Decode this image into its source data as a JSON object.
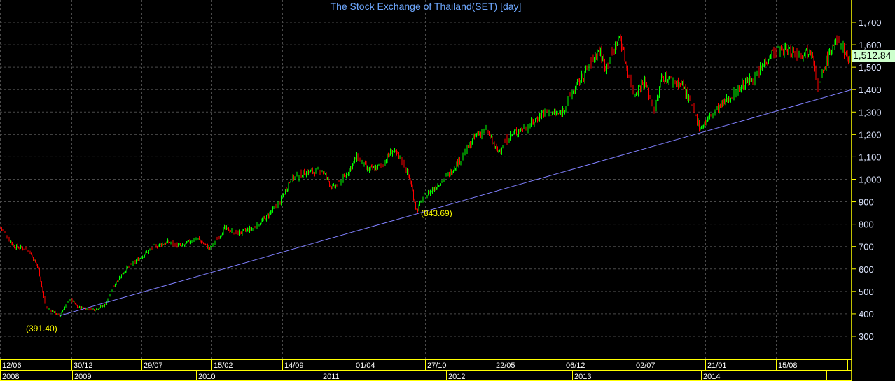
{
  "chart_data": {
    "type": "candlestick",
    "title": "The Stock Exchange of Thailand(SET) [day]",
    "ylim": [
      200,
      1800
    ],
    "y_ticks": [
      300,
      400,
      500,
      600,
      700,
      800,
      900,
      1000,
      1100,
      1200,
      1300,
      1400,
      1500,
      1600,
      1700
    ],
    "y_tick_labels": [
      "300",
      "400",
      "500",
      "600",
      "700",
      "800",
      "900",
      "1,000",
      "1,100",
      "1,200",
      "1,300",
      "1,400",
      "1,500",
      "1,600",
      "1,700"
    ],
    "last_value": "1,512.84",
    "date_ticks": [
      "12/06",
      "30/12",
      "29/07",
      "15/02",
      "14/09",
      "01/04",
      "27/10",
      "22/05",
      "06/12",
      "02/07",
      "21/01",
      "15/08"
    ],
    "year_labels": [
      "2008",
      "2009",
      "2010",
      "2011",
      "2012",
      "2013",
      "2014"
    ],
    "annotations": [
      {
        "text": "(391.40)",
        "value": 391.4,
        "position": "low-2008"
      },
      {
        "text": "(843.69)",
        "value": 843.69,
        "position": "low-2011"
      }
    ],
    "trendline": {
      "from": 391.4,
      "through": 843.69,
      "end": 1400
    },
    "close_path": [
      790,
      700,
      690,
      600,
      430,
      391,
      470,
      430,
      420,
      440,
      540,
      600,
      650,
      700,
      720,
      700,
      740,
      690,
      780,
      760,
      780,
      830,
      900,
      1000,
      1030,
      1040,
      960,
      1000,
      1100,
      1040,
      1060,
      1130,
      1080,
      1000,
      860,
      920,
      960,
      1020,
      1100,
      1200,
      1220,
      1120,
      1200,
      1250,
      1300,
      1290,
      1400,
      1500,
      1580,
      1500,
      1640,
      1500,
      1380,
      1440,
      1300,
      1460,
      1440,
      1420,
      1230,
      1300,
      1360,
      1420,
      1460,
      1560,
      1580,
      1560,
      1580,
      1400,
      1530,
      1600,
      1610,
      1512.84
    ],
    "colors": {
      "up": "#00ff00",
      "down": "#ff0000",
      "trendline": "#8080ff",
      "axis": "#ffff00",
      "grid": "#4a4a4a",
      "title": "#6ea8ff",
      "annotation": "#ffff00"
    },
    "grid": true
  }
}
